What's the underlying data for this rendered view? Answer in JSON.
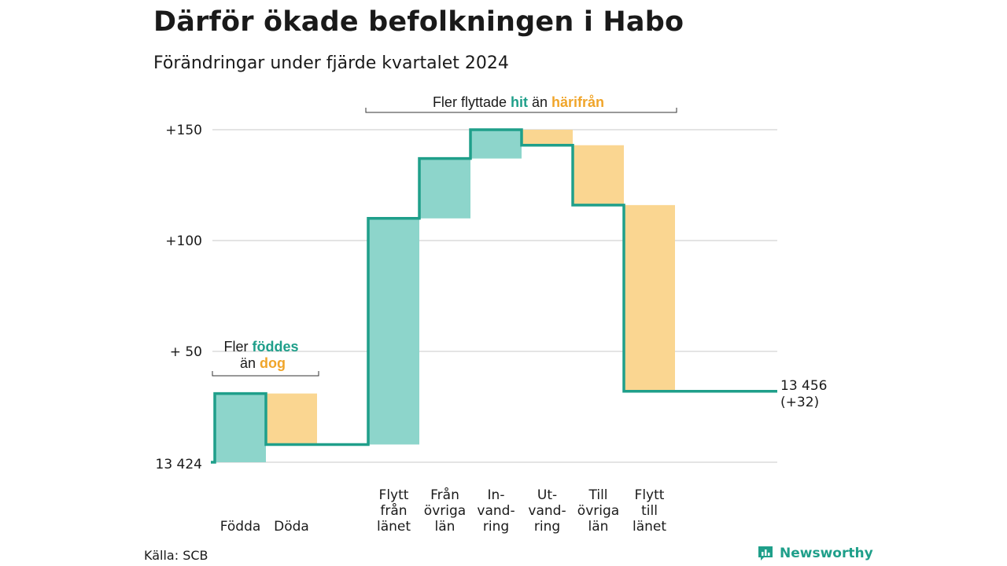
{
  "title": "Därför ökade befolkningen i Habo",
  "subtitle": "Förändringar under fjärde kvartalet 2024",
  "source": "Källa: SCB",
  "brand": "Newsworthy",
  "colors": {
    "increase_fill": "#8dd5cb",
    "decrease_fill": "#fad691",
    "line": "#1f9f8a",
    "accent_teal": "#1f9f8a",
    "accent_orange": "#f0a52a",
    "grid": "#dcdcdc"
  },
  "annotations": {
    "births": {
      "line1_prefix": "Fler ",
      "line1_highlight": "föddes",
      "line2_prefix": "än ",
      "line2_highlight": "dog"
    },
    "migration": {
      "prefix": "Fler flyttade ",
      "highlight1": "hit",
      "middle": " än ",
      "highlight2": "härifrån"
    }
  },
  "chart_data": {
    "type": "waterfall",
    "title": "Därför ökade befolkningen i Habo",
    "subtitle": "Förändringar under fjärde kvartalet 2024",
    "base_value": 13424,
    "base_label": "13 424",
    "end_label_line1": "13 456",
    "end_label_line2": "(+32)",
    "yticks": [
      {
        "value": 150,
        "label": "+150"
      },
      {
        "value": 100,
        "label": "+100"
      },
      {
        "value": 50,
        "label": "+ 50"
      }
    ],
    "ylim": [
      0,
      150
    ],
    "grid": true,
    "steps": [
      {
        "lines": [
          "Födda"
        ],
        "change": 31
      },
      {
        "lines": [
          "Döda"
        ],
        "change": -23
      },
      {
        "lines": [
          "Flytt",
          "från",
          "länet"
        ],
        "change": 102
      },
      {
        "lines": [
          "Från",
          "övriga",
          "län"
        ],
        "change": 27
      },
      {
        "lines": [
          "In-",
          "vand-",
          "ring"
        ],
        "change": 13
      },
      {
        "lines": [
          "Ut-",
          "vand-",
          "ring"
        ],
        "change": -7
      },
      {
        "lines": [
          "Till",
          "övriga",
          "län"
        ],
        "change": -27
      },
      {
        "lines": [
          "Flytt",
          "till",
          "länet"
        ],
        "change": -84
      }
    ],
    "gap_after_step": 2,
    "final_change": 32
  }
}
